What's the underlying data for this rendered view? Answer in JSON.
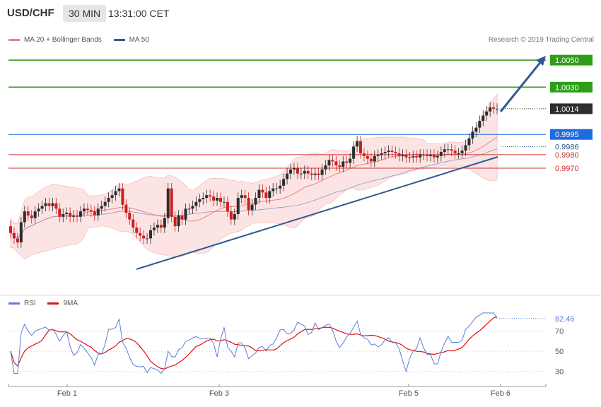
{
  "header": {
    "symbol": "USD/CHF",
    "timeframe": "30 MIN",
    "time": "13:31:00 CET"
  },
  "legend": {
    "items": [
      {
        "label": "MA 20 + Bollinger Bands",
        "color": "#f08080"
      },
      {
        "label": "MA 50",
        "color": "#2e5a8e"
      }
    ]
  },
  "credit": "Research © 2019 Trading Central",
  "rsi_legend": {
    "items": [
      {
        "label": "RSI",
        "color": "#5b7fd6"
      },
      {
        "label": "9MA",
        "color": "#e01010"
      }
    ]
  },
  "colors": {
    "up": "#2d2d2d",
    "down": "#cc1f1f",
    "resistance": "#2e9e18",
    "support_red": "#d03030",
    "support_blue": "#1e6be0",
    "trend": "#2e5a8e",
    "band_fill": "#fde4e4"
  },
  "chart_data": [
    {
      "type": "candlestick",
      "symbol": "USD/CHF",
      "interval": "30 MIN",
      "ylim": [
        0.988,
        1.006
      ],
      "x_tick_labels": [
        "Feb 1",
        "Feb 3",
        "Feb 5",
        "Feb 6"
      ],
      "levels": [
        {
          "label": "1.0050",
          "value": 1.005,
          "kind": "resistance",
          "color": "#2e9e18"
        },
        {
          "label": "1.0030",
          "value": 1.003,
          "kind": "resistance",
          "color": "#2e9e18"
        },
        {
          "label": "1.0014",
          "value": 1.0014,
          "kind": "last-price",
          "color": "#2d2d2d"
        },
        {
          "label": "0.9995",
          "value": 0.9995,
          "kind": "support",
          "color": "#1e6be0"
        },
        {
          "label": "0.9986",
          "value": 0.9986,
          "kind": "trendline-value",
          "color": "#2e5a8e"
        },
        {
          "label": "0.9980",
          "value": 0.998,
          "kind": "support",
          "color": "#d03030"
        },
        {
          "label": "0.9970",
          "value": 0.997,
          "kind": "support",
          "color": "#d03030"
        }
      ],
      "close": [
        0.9922,
        0.9918,
        0.9915,
        0.993,
        0.9938,
        0.9935,
        0.9933,
        0.9938,
        0.994,
        0.9942,
        0.9944,
        0.9942,
        0.9944,
        0.994,
        0.9934,
        0.9936,
        0.9937,
        0.9934,
        0.9935,
        0.9934,
        0.9938,
        0.994,
        0.9939,
        0.9938,
        0.9935,
        0.994,
        0.9942,
        0.9945,
        0.9948,
        0.995,
        0.9953,
        0.9955,
        0.9943,
        0.9937,
        0.9932,
        0.9926,
        0.9922,
        0.992,
        0.9918,
        0.9918,
        0.9924,
        0.9926,
        0.9928,
        0.9926,
        0.9933,
        0.9955,
        0.9934,
        0.9927,
        0.9935,
        0.9932,
        0.994,
        0.994,
        0.9942,
        0.9945,
        0.9947,
        0.9948,
        0.995,
        0.9949,
        0.9946,
        0.9948,
        0.9945,
        0.9945,
        0.9938,
        0.9932,
        0.9936,
        0.9948,
        0.995,
        0.9948,
        0.9939,
        0.9943,
        0.9948,
        0.9954,
        0.9952,
        0.9948,
        0.9953,
        0.9955,
        0.9955,
        0.9957,
        0.9962,
        0.9966,
        0.9969,
        0.997,
        0.9966,
        0.9966,
        0.9968,
        0.9966,
        0.9965,
        0.9966,
        0.9965,
        0.9969,
        0.9972,
        0.9976,
        0.9975,
        0.9972,
        0.9971,
        0.9975,
        0.9974,
        0.9977,
        0.9986,
        0.999,
        0.9981,
        0.9979,
        0.9977,
        0.9975,
        0.9979,
        0.998,
        0.9981,
        0.9982,
        0.9983,
        0.9982,
        0.9981,
        0.9979,
        0.998,
        0.9978,
        0.9978,
        0.9979,
        0.9978,
        0.998,
        0.998,
        0.9979,
        0.998,
        0.9978,
        0.9979,
        0.9982,
        0.9984,
        0.9984,
        0.9983,
        0.9981,
        0.9981,
        0.9983,
        0.9987,
        0.9992,
        0.9997,
        1.0,
        1.0005,
        1.0009,
        1.0012,
        1.0015,
        1.0014,
        1.0014
      ],
      "open": [
        0.9927,
        0.9922,
        0.9918,
        0.9915,
        0.993,
        0.9938,
        0.9935,
        0.9933,
        0.9938,
        0.994,
        0.9942,
        0.9944,
        0.9942,
        0.9944,
        0.994,
        0.9934,
        0.9936,
        0.9937,
        0.9934,
        0.9935,
        0.9934,
        0.9938,
        0.994,
        0.9939,
        0.9938,
        0.9935,
        0.994,
        0.9942,
        0.9945,
        0.9948,
        0.995,
        0.9953,
        0.9955,
        0.9943,
        0.9937,
        0.9932,
        0.9926,
        0.9922,
        0.992,
        0.9918,
        0.9918,
        0.9924,
        0.9926,
        0.9928,
        0.9926,
        0.9933,
        0.9955,
        0.9934,
        0.9927,
        0.9935,
        0.9932,
        0.994,
        0.994,
        0.9942,
        0.9945,
        0.9947,
        0.9948,
        0.995,
        0.9949,
        0.9946,
        0.9948,
        0.9945,
        0.9945,
        0.9938,
        0.9932,
        0.9936,
        0.9948,
        0.995,
        0.9948,
        0.9939,
        0.9943,
        0.9948,
        0.9954,
        0.9952,
        0.9948,
        0.9953,
        0.9955,
        0.9955,
        0.9957,
        0.9962,
        0.9966,
        0.9969,
        0.997,
        0.9966,
        0.9966,
        0.9968,
        0.9966,
        0.9965,
        0.9966,
        0.9965,
        0.9969,
        0.9972,
        0.9976,
        0.9975,
        0.9972,
        0.9971,
        0.9975,
        0.9974,
        0.9977,
        0.9986,
        0.999,
        0.9981,
        0.9979,
        0.9977,
        0.9975,
        0.9979,
        0.998,
        0.9981,
        0.9982,
        0.9983,
        0.9982,
        0.9981,
        0.9979,
        0.998,
        0.9978,
        0.9978,
        0.9979,
        0.9978,
        0.998,
        0.998,
        0.9979,
        0.998,
        0.9978,
        0.9979,
        0.9982,
        0.9984,
        0.9984,
        0.9983,
        0.9981,
        0.9981,
        0.9983,
        0.9987,
        0.9992,
        0.9997,
        1.0,
        1.0005,
        1.0009,
        1.0012,
        1.0015,
        1.0014
      ],
      "rsi": {
        "last_label": "82.46",
        "ylim": [
          20,
          90
        ],
        "ticks": [
          "70",
          "50",
          "30"
        ]
      }
    }
  ]
}
